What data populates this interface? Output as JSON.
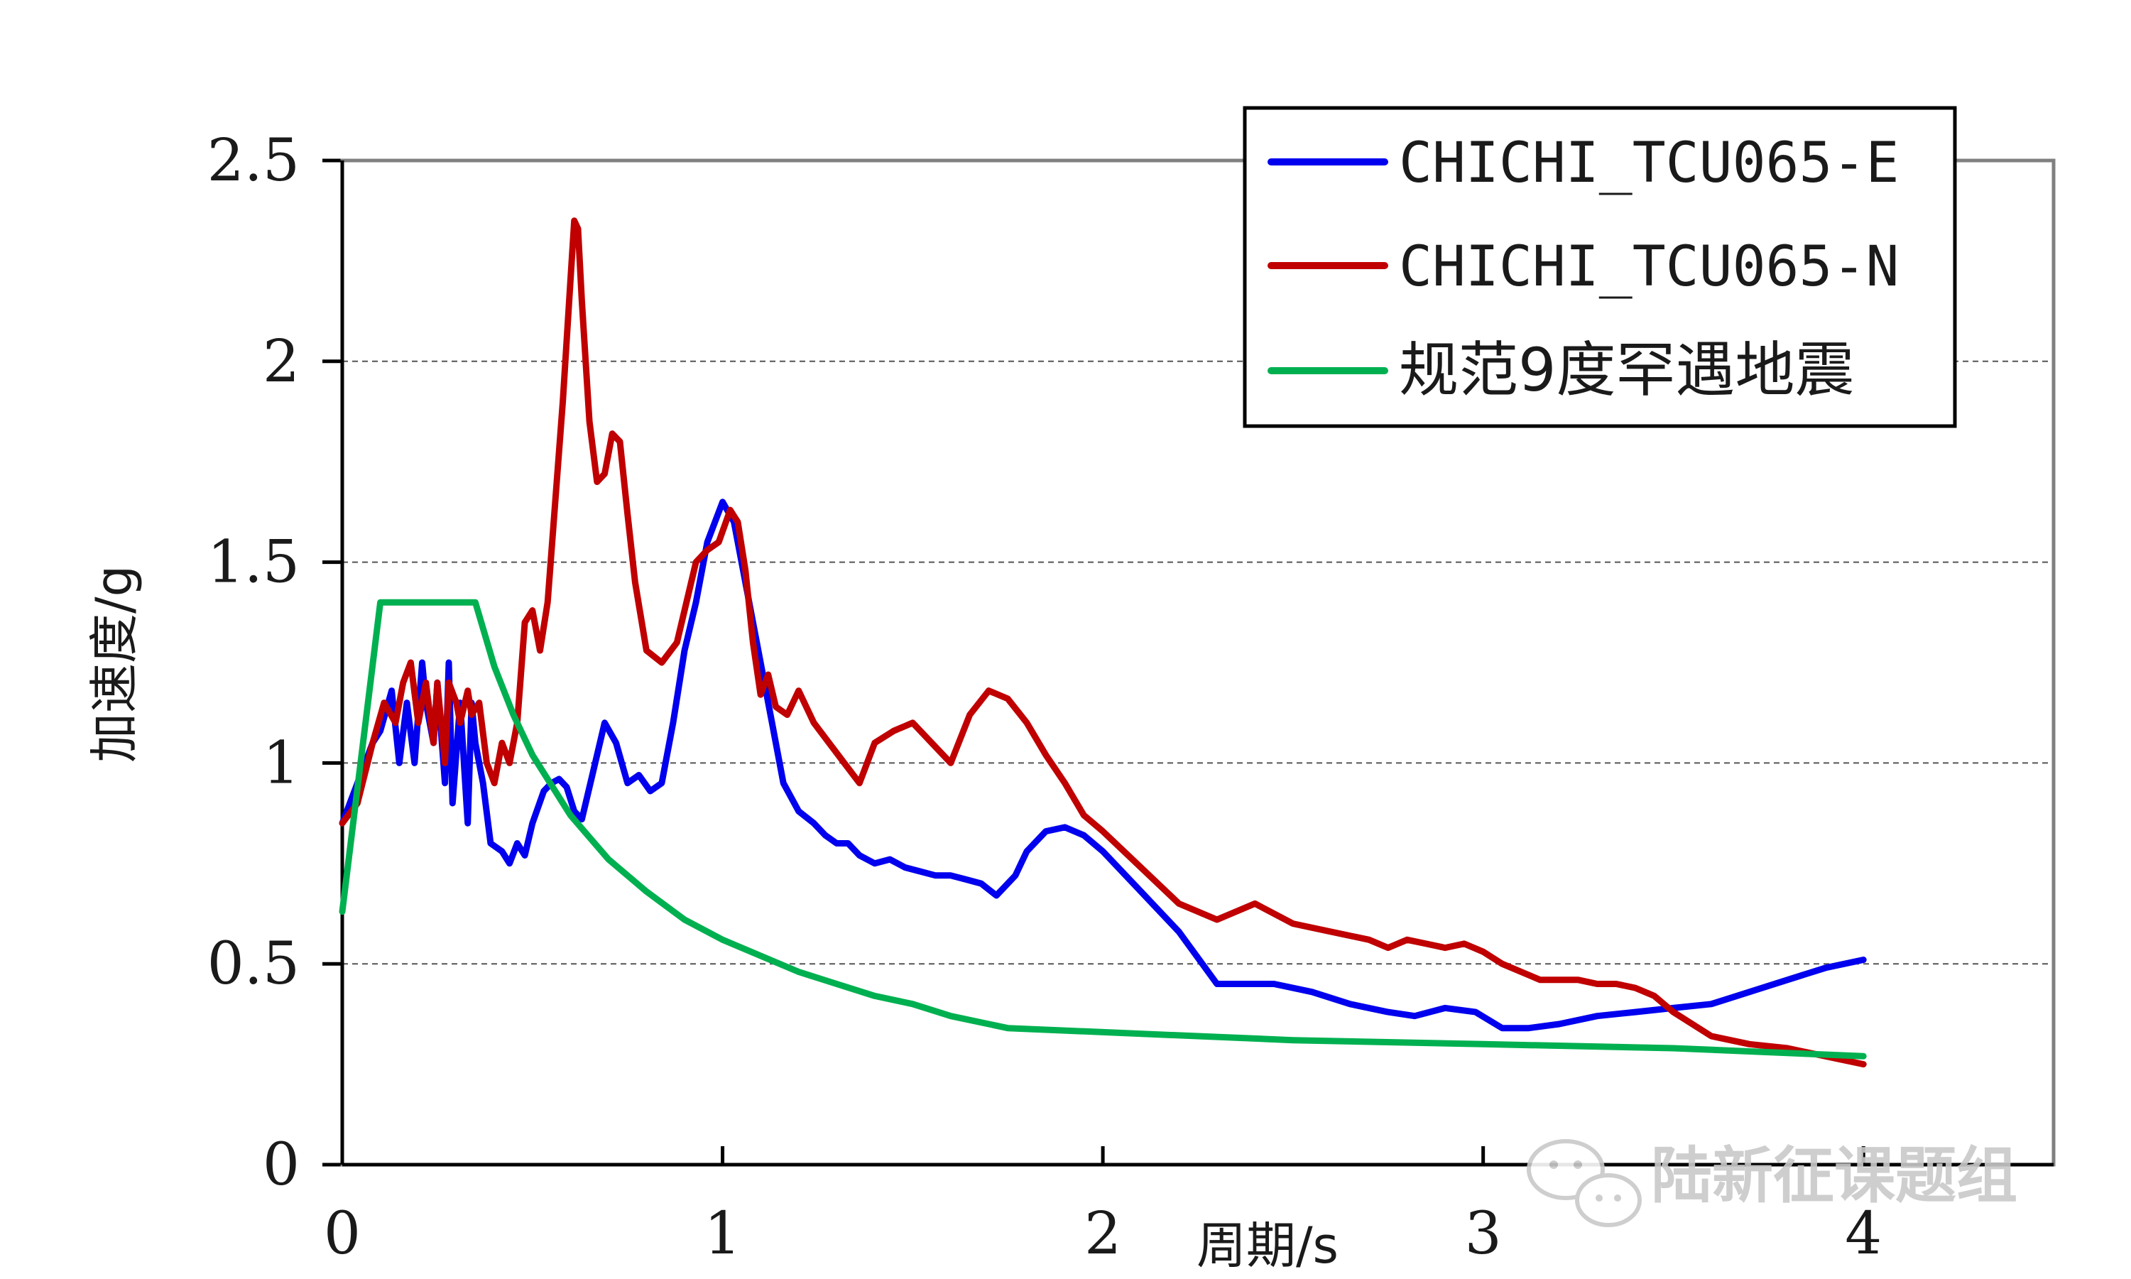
{
  "chart_data": {
    "type": "line",
    "title": "",
    "xlabel": "周期/s",
    "ylabel": "加速度/g",
    "xlim": [
      0,
      4.5
    ],
    "ylim": [
      0,
      2.5
    ],
    "xticks": [
      "0",
      "1",
      "2",
      "3",
      "4"
    ],
    "yticks": [
      "0",
      "0.5",
      "1",
      "1.5",
      "2",
      "2.5"
    ],
    "grid": "horizontal dashed",
    "legend_position": "top-right",
    "series": [
      {
        "name": "CHICHI_TCU065-E",
        "color": "#0000ee",
        "x": [
          0,
          0.04,
          0.08,
          0.1,
          0.13,
          0.15,
          0.17,
          0.19,
          0.21,
          0.22,
          0.24,
          0.25,
          0.27,
          0.28,
          0.29,
          0.31,
          0.33,
          0.34,
          0.35,
          0.37,
          0.39,
          0.42,
          0.44,
          0.46,
          0.48,
          0.5,
          0.53,
          0.55,
          0.57,
          0.59,
          0.61,
          0.63,
          0.66,
          0.69,
          0.72,
          0.75,
          0.78,
          0.81,
          0.84,
          0.87,
          0.9,
          0.93,
          0.96,
          1.0,
          1.03,
          1.06,
          1.08,
          1.1,
          1.13,
          1.16,
          1.2,
          1.24,
          1.27,
          1.3,
          1.33,
          1.36,
          1.4,
          1.44,
          1.48,
          1.52,
          1.56,
          1.6,
          1.64,
          1.68,
          1.72,
          1.77,
          1.8,
          1.85,
          1.9,
          1.95,
          2.0,
          2.1,
          2.2,
          2.3,
          2.35,
          2.45,
          2.55,
          2.65,
          2.75,
          2.82,
          2.9,
          2.98,
          3.05,
          3.12,
          3.2,
          3.3,
          3.4,
          3.5,
          3.6,
          3.7,
          3.8,
          3.9,
          4.0
        ],
        "y": [
          0.85,
          0.95,
          1.05,
          1.08,
          1.18,
          1.0,
          1.15,
          1.0,
          1.25,
          1.15,
          1.05,
          1.2,
          0.95,
          1.25,
          0.9,
          1.15,
          0.85,
          1.15,
          1.05,
          0.95,
          0.8,
          0.78,
          0.75,
          0.8,
          0.77,
          0.85,
          0.93,
          0.95,
          0.96,
          0.94,
          0.88,
          0.86,
          0.98,
          1.1,
          1.05,
          0.95,
          0.97,
          0.93,
          0.95,
          1.1,
          1.28,
          1.4,
          1.55,
          1.65,
          1.6,
          1.45,
          1.35,
          1.25,
          1.1,
          0.95,
          0.88,
          0.85,
          0.82,
          0.8,
          0.8,
          0.77,
          0.75,
          0.76,
          0.74,
          0.73,
          0.72,
          0.72,
          0.71,
          0.7,
          0.67,
          0.72,
          0.78,
          0.83,
          0.84,
          0.82,
          0.78,
          0.68,
          0.58,
          0.45,
          0.45,
          0.45,
          0.43,
          0.4,
          0.38,
          0.37,
          0.39,
          0.38,
          0.34,
          0.34,
          0.35,
          0.37,
          0.38,
          0.39,
          0.4,
          0.43,
          0.46,
          0.49,
          0.51
        ]
      },
      {
        "name": "CHICHI_TCU065-N",
        "color": "#c00000",
        "x": [
          0,
          0.04,
          0.08,
          0.11,
          0.14,
          0.16,
          0.18,
          0.2,
          0.22,
          0.24,
          0.25,
          0.27,
          0.28,
          0.3,
          0.31,
          0.33,
          0.34,
          0.36,
          0.38,
          0.4,
          0.42,
          0.44,
          0.46,
          0.48,
          0.5,
          0.52,
          0.54,
          0.56,
          0.58,
          0.6,
          0.61,
          0.62,
          0.63,
          0.65,
          0.67,
          0.69,
          0.71,
          0.73,
          0.75,
          0.77,
          0.8,
          0.84,
          0.88,
          0.91,
          0.93,
          0.96,
          0.99,
          1.02,
          1.04,
          1.06,
          1.08,
          1.1,
          1.12,
          1.14,
          1.17,
          1.2,
          1.24,
          1.28,
          1.32,
          1.36,
          1.4,
          1.45,
          1.5,
          1.55,
          1.6,
          1.65,
          1.7,
          1.75,
          1.8,
          1.85,
          1.9,
          1.95,
          2.0,
          2.1,
          2.2,
          2.3,
          2.4,
          2.5,
          2.6,
          2.7,
          2.75,
          2.8,
          2.85,
          2.9,
          2.95,
          3.0,
          3.05,
          3.1,
          3.15,
          3.2,
          3.25,
          3.3,
          3.35,
          3.4,
          3.45,
          3.5,
          3.6,
          3.7,
          3.8,
          3.9,
          4.0
        ],
        "y": [
          0.85,
          0.9,
          1.05,
          1.15,
          1.1,
          1.2,
          1.25,
          1.1,
          1.2,
          1.05,
          1.2,
          1.0,
          1.2,
          1.15,
          1.1,
          1.18,
          1.12,
          1.15,
          1.0,
          0.95,
          1.05,
          1.0,
          1.1,
          1.35,
          1.38,
          1.28,
          1.4,
          1.65,
          1.9,
          2.2,
          2.35,
          2.33,
          2.15,
          1.85,
          1.7,
          1.72,
          1.82,
          1.8,
          1.62,
          1.45,
          1.28,
          1.25,
          1.3,
          1.42,
          1.5,
          1.53,
          1.55,
          1.63,
          1.6,
          1.48,
          1.3,
          1.17,
          1.22,
          1.14,
          1.12,
          1.18,
          1.1,
          1.05,
          1.0,
          0.95,
          1.05,
          1.08,
          1.1,
          1.05,
          1.0,
          1.12,
          1.18,
          1.16,
          1.1,
          1.02,
          0.95,
          0.87,
          0.83,
          0.74,
          0.65,
          0.61,
          0.65,
          0.6,
          0.58,
          0.56,
          0.54,
          0.56,
          0.55,
          0.54,
          0.55,
          0.53,
          0.5,
          0.48,
          0.46,
          0.46,
          0.46,
          0.45,
          0.45,
          0.44,
          0.42,
          0.38,
          0.32,
          0.3,
          0.29,
          0.27,
          0.25
        ]
      },
      {
        "name": "规范9度罕遇地震",
        "color": "#00b050",
        "x": [
          0,
          0.1,
          0.35,
          0.4,
          0.45,
          0.5,
          0.6,
          0.7,
          0.8,
          0.9,
          1.0,
          1.1,
          1.2,
          1.3,
          1.4,
          1.5,
          1.6,
          1.75,
          2.0,
          2.5,
          3.0,
          3.5,
          4.0
        ],
        "y": [
          0.63,
          1.4,
          1.4,
          1.24,
          1.12,
          1.02,
          0.87,
          0.76,
          0.68,
          0.61,
          0.56,
          0.52,
          0.48,
          0.45,
          0.42,
          0.4,
          0.37,
          0.34,
          0.33,
          0.31,
          0.3,
          0.29,
          0.27
        ]
      }
    ]
  },
  "watermark": {
    "text": "陆新征课题组",
    "icon": "wechat-icon"
  }
}
